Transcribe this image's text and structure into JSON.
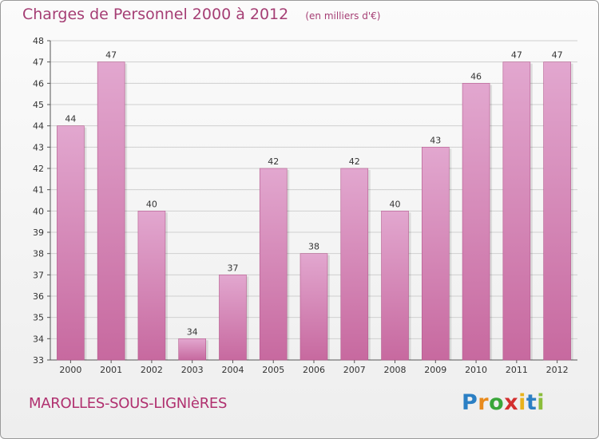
{
  "header": {
    "title": "Charges de Personnel 2000 à 2012",
    "subtitle": "(en milliers d'€)"
  },
  "footer": {
    "commune": "MAROLLES-SOUS-LIGNIèRES",
    "logo": {
      "letters": [
        "P",
        "r",
        "o",
        "x",
        "i",
        "t",
        "i"
      ],
      "colors": [
        "#2b7fc4",
        "#e88a1c",
        "#3aa63a",
        "#d32f2f",
        "#e8b21c",
        "#2b7fc4",
        "#8bbd3b"
      ]
    }
  },
  "chart_data": {
    "type": "bar",
    "categories": [
      "2000",
      "2001",
      "2002",
      "2003",
      "2004",
      "2005",
      "2006",
      "2007",
      "2008",
      "2009",
      "2010",
      "2011",
      "2012"
    ],
    "values": [
      44,
      47,
      40,
      34,
      37,
      42,
      38,
      42,
      40,
      43,
      46,
      47,
      47
    ],
    "data_labels": [
      "44",
      "47",
      "40",
      "34",
      "37",
      "42",
      "38",
      "42",
      "40",
      "43",
      "46",
      "47",
      "47"
    ],
    "yticks": [
      "33",
      "34",
      "35",
      "36",
      "37",
      "38",
      "39",
      "40",
      "41",
      "42",
      "43",
      "44",
      "45",
      "46",
      "47",
      "48"
    ],
    "ylim": [
      33,
      48
    ],
    "grid": true,
    "bar_color": "#c7699f",
    "bar_color_light": "#e2a7cf",
    "label_color": "#333333"
  }
}
